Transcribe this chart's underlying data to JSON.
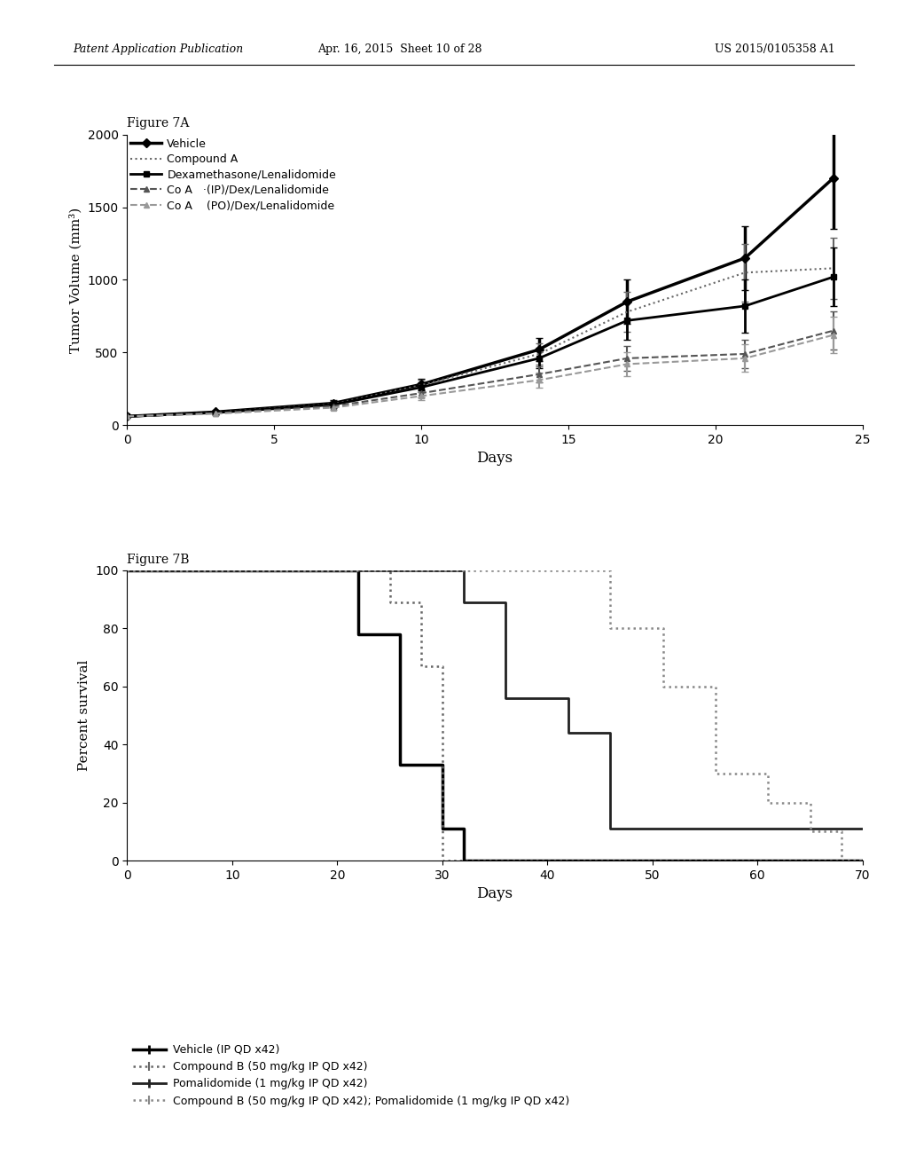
{
  "fig7a": {
    "title": "Figure 7A",
    "xlabel": "Days",
    "ylabel": "Tumor Volume (mm³)",
    "xlim": [
      0,
      25
    ],
    "ylim": [
      0,
      2000
    ],
    "xticks": [
      0,
      5,
      10,
      15,
      20,
      25
    ],
    "yticks": [
      0,
      500,
      1000,
      1500,
      2000
    ],
    "lines": {
      "vehicle": {
        "x": [
          0,
          3,
          7,
          10,
          14,
          17,
          21,
          24
        ],
        "y": [
          60,
          90,
          150,
          280,
          520,
          850,
          1150,
          1700
        ],
        "err": [
          5,
          10,
          20,
          40,
          80,
          150,
          220,
          350
        ],
        "color": "#000000",
        "linewidth": 2.5,
        "linestyle": "-",
        "marker": "D",
        "markersize": 5,
        "label": "Vehicle"
      },
      "compound_a": {
        "x": [
          0,
          3,
          7,
          10,
          14,
          17,
          21,
          24
        ],
        "y": [
          60,
          88,
          145,
          275,
          490,
          780,
          1050,
          1080
        ],
        "err": [
          5,
          10,
          20,
          38,
          75,
          140,
          200,
          210
        ],
        "color": "#666666",
        "linewidth": 1.5,
        "linestyle": ":",
        "marker": null,
        "markersize": 0,
        "label": "Compound A"
      },
      "dex_len": {
        "x": [
          0,
          3,
          7,
          10,
          14,
          17,
          21,
          24
        ],
        "y": [
          60,
          85,
          140,
          260,
          460,
          720,
          820,
          1020
        ],
        "err": [
          5,
          10,
          18,
          35,
          70,
          130,
          185,
          200
        ],
        "color": "#000000",
        "linewidth": 2.0,
        "linestyle": "-",
        "marker": "s",
        "markersize": 4,
        "label": "Dexamethasone/Lenalidomide"
      },
      "coa_ip": {
        "x": [
          0,
          3,
          7,
          10,
          14,
          17,
          21,
          24
        ],
        "y": [
          60,
          82,
          130,
          220,
          350,
          460,
          490,
          650
        ],
        "err": [
          5,
          8,
          15,
          28,
          55,
          85,
          100,
          130
        ],
        "color": "#555555",
        "linewidth": 1.5,
        "linestyle": "--",
        "marker": "^",
        "markersize": 4,
        "label": "Co A   ·(IP)/Dex/Lenalidomide"
      },
      "coa_po": {
        "x": [
          0,
          3,
          7,
          10,
          14,
          17,
          21,
          24
        ],
        "y": [
          60,
          78,
          120,
          200,
          310,
          420,
          460,
          620
        ],
        "err": [
          5,
          8,
          14,
          26,
          50,
          80,
          95,
          125
        ],
        "color": "#999999",
        "linewidth": 1.5,
        "linestyle": "--",
        "marker": "^",
        "markersize": 4,
        "label": "Co A    (PO)/Dex/Lenalidomide"
      }
    }
  },
  "fig7b": {
    "title": "Figure 7B",
    "xlabel": "Days",
    "ylabel": "Percent survival",
    "xlim": [
      0,
      70
    ],
    "ylim": [
      0,
      100
    ],
    "xticks": [
      0,
      10,
      20,
      30,
      40,
      50,
      60,
      70
    ],
    "yticks": [
      0,
      20,
      40,
      60,
      80,
      100
    ],
    "lines": {
      "vehicle": {
        "x": [
          0,
          22,
          22,
          26,
          26,
          30,
          30,
          32,
          32,
          70
        ],
        "y": [
          100,
          100,
          78,
          78,
          33,
          33,
          11,
          11,
          0,
          0
        ],
        "color": "#000000",
        "linewidth": 2.5,
        "linestyle": "-",
        "label": "Vehicle (IP QD x42)"
      },
      "compound_b": {
        "x": [
          0,
          25,
          25,
          28,
          28,
          30,
          30,
          35,
          35,
          70
        ],
        "y": [
          100,
          100,
          89,
          89,
          67,
          67,
          0,
          0,
          0,
          0
        ],
        "color": "#666666",
        "linewidth": 1.8,
        "linestyle": ":",
        "label": "Compound B (50 mg/kg IP QD x42)"
      },
      "pomalidomide": {
        "x": [
          0,
          32,
          32,
          36,
          36,
          42,
          42,
          46,
          46,
          70
        ],
        "y": [
          100,
          100,
          89,
          89,
          56,
          56,
          44,
          44,
          11,
          11
        ],
        "color": "#222222",
        "linewidth": 2.0,
        "linestyle": "-",
        "label": "Pomalidomide (1 mg/kg IP QD x42)"
      },
      "comb": {
        "x": [
          0,
          46,
          46,
          51,
          51,
          56,
          56,
          61,
          61,
          65,
          65,
          68,
          68,
          70
        ],
        "y": [
          100,
          100,
          80,
          80,
          60,
          60,
          30,
          30,
          20,
          20,
          10,
          10,
          0,
          0
        ],
        "color": "#888888",
        "linewidth": 1.8,
        "linestyle": ":",
        "label": "Compound B (50 mg/kg IP QD x42); Pomalidomide (1 mg/kg IP QD x42)"
      }
    }
  },
  "header": {
    "left": "Patent Application Publication",
    "middle": "Apr. 16, 2015  Sheet 10 of 28",
    "right": "US 2015/0105358 A1"
  },
  "background_color": "#ffffff"
}
